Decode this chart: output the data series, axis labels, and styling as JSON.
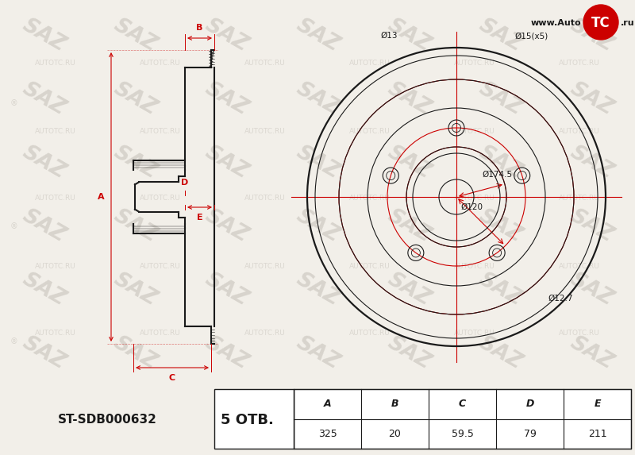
{
  "part_number": "ST-SDB000632",
  "bolt_count": "5",
  "otv_label": "ОТВ.",
  "table_headers": [
    "A",
    "B",
    "C",
    "D",
    "E"
  ],
  "table_values": [
    "325",
    "20",
    "59.5",
    "79",
    "211"
  ],
  "front_dims": {
    "d_outer": "Ø13",
    "d_bolt_circle": "Ø15(x5)",
    "d_mid1": "Ø120",
    "d_mid2": "Ø174.5",
    "d_hub": "Ø12.7"
  },
  "bg_color": "#f2efe9",
  "line_color": "#1a1a1a",
  "red_color": "#cc0000",
  "watermark_color": "#d8d4cd",
  "title_url": "www.Auto",
  "logo_tc": "TC",
  "logo_ru": ".ru"
}
